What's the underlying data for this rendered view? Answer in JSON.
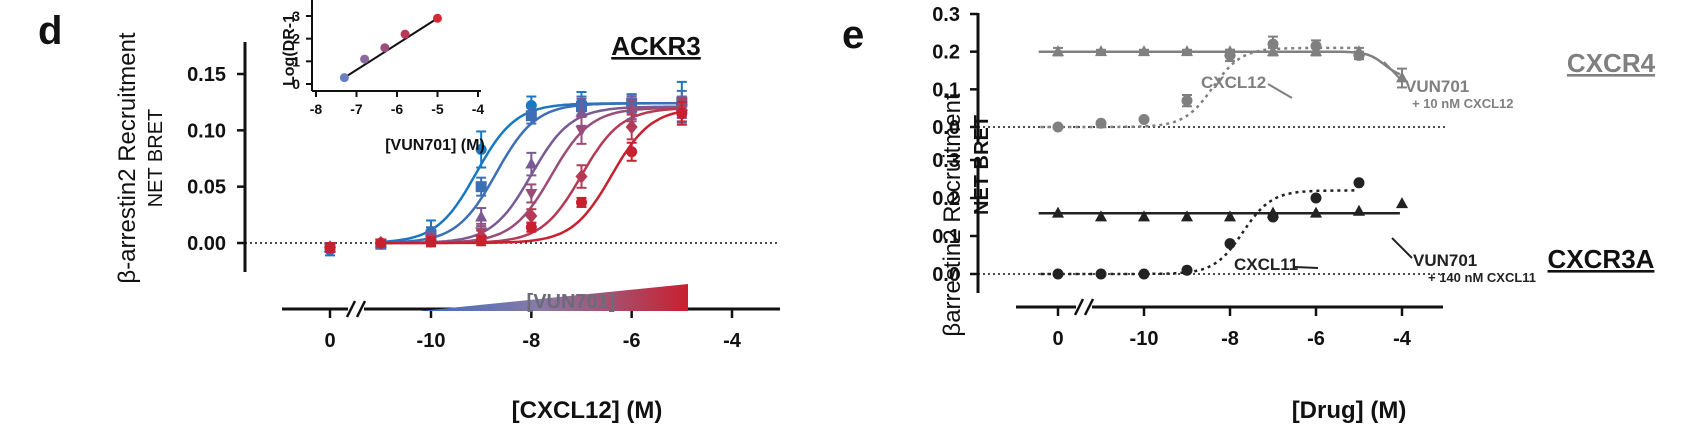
{
  "panels": {
    "d": {
      "letter": "d",
      "receptor": "ACKR3",
      "ylabel_main": "β-arrestin2 Recruitment",
      "ylabel_sub": "NET BRET",
      "xlabel": "[CXCL12] (M)",
      "gradient_label": "[VUN701]",
      "inset": {
        "ylabel": "Log(DR-1",
        "xlabel": "[VUN701] (M)"
      }
    },
    "e": {
      "letter": "e",
      "ylabel_main": "βarrestin2 Recruitment",
      "ylabel_sub": "NET BRET",
      "xlabel": "[Drug] (M)",
      "top": {
        "receptor": "CXCR4",
        "ann_ligand": "CXCL12",
        "ann_drug": "VUN701",
        "ann_drug_sub": "+ 10 nM CXCL12"
      },
      "bottom": {
        "receptor": "CXCR3A",
        "ann_ligand": "CXCL11",
        "ann_drug": "VUN701",
        "ann_drug_sub": "+ 140 nM CXCL11"
      }
    }
  },
  "chart_data": [
    {
      "id": "d-main",
      "type": "line",
      "title": "ACKR3",
      "xlabel": "[CXCL12] (M)",
      "ylabel": "β-arrestin2 Recruitment NET BRET",
      "x_ticks": [
        "0",
        "-10",
        "-8",
        "-6",
        "-4"
      ],
      "x_tick_values": [
        -13,
        -10,
        -8,
        -6,
        -4
      ],
      "y_ticks": [
        "0.00",
        "0.05",
        "0.10",
        "0.15"
      ],
      "xlim": [
        -13.8,
        -3.1
      ],
      "ylim": [
        -0.02,
        0.16
      ],
      "x_axis_break": true,
      "reference_line_y": 0,
      "color_key": {
        "0": "#1a78c2",
        "1": "#3d6fb5",
        "2": "#7a5a93",
        "3": "#9a4d78",
        "4": "#b53a55",
        "5": "#c8202f"
      },
      "series": [
        {
          "color": "#1a78c2",
          "marker": "circle",
          "top": 0.124,
          "ec50_log": -9.1,
          "points": [
            [
              -13,
              -0.006
            ],
            [
              -11,
              -0.001
            ],
            [
              -10,
              0.01
            ],
            [
              -9,
              0.083
            ],
            [
              -8,
              0.122
            ],
            [
              -7,
              0.124
            ],
            [
              -6,
              0.124
            ],
            [
              -5,
              0.125
            ]
          ],
          "err": [
            0.005,
            0.004,
            0.01,
            0.016,
            0.008,
            0.01,
            0.008,
            0.018
          ]
        },
        {
          "color": "#3d6fb5",
          "marker": "square",
          "top": 0.124,
          "ec50_log": -8.7,
          "points": [
            [
              -13,
              -0.004
            ],
            [
              -11,
              -0.001
            ],
            [
              -10,
              0.007
            ],
            [
              -9,
              0.05
            ],
            [
              -8,
              0.113
            ],
            [
              -7,
              0.121
            ],
            [
              -6,
              0.124
            ],
            [
              -5,
              0.125
            ]
          ],
          "err": [
            0.004,
            0.003,
            0.007,
            0.008,
            0.007,
            0.009,
            0.008,
            0.01
          ]
        },
        {
          "color": "#7a5a93",
          "marker": "triangle",
          "top": 0.121,
          "ec50_log": -8.0,
          "points": [
            [
              -13,
              -0.004
            ],
            [
              -11,
              0.0
            ],
            [
              -10,
              0.004
            ],
            [
              -9,
              0.023
            ],
            [
              -8,
              0.07
            ],
            [
              -7,
              0.116
            ],
            [
              -6,
              0.12
            ],
            [
              -5,
              0.121
            ]
          ],
          "err": [
            0.004,
            0.003,
            0.005,
            0.008,
            0.01,
            0.012,
            0.01,
            0.009
          ]
        },
        {
          "color": "#9a4d78",
          "marker": "triangle-down",
          "top": 0.12,
          "ec50_log": -7.6,
          "points": [
            [
              -13,
              -0.004
            ],
            [
              -11,
              0.0
            ],
            [
              -10,
              0.003
            ],
            [
              -9,
              0.01
            ],
            [
              -8,
              0.044
            ],
            [
              -7,
              0.1
            ],
            [
              -6,
              0.117
            ],
            [
              -5,
              0.119
            ]
          ],
          "err": [
            0.004,
            0.003,
            0.004,
            0.007,
            0.008,
            0.012,
            0.009,
            0.008
          ]
        },
        {
          "color": "#b53a55",
          "marker": "diamond",
          "top": 0.12,
          "ec50_log": -7.0,
          "points": [
            [
              -13,
              -0.004
            ],
            [
              -11,
              0.0
            ],
            [
              -10,
              0.002
            ],
            [
              -9,
              0.006
            ],
            [
              -8,
              0.024
            ],
            [
              -7,
              0.059
            ],
            [
              -6,
              0.103
            ],
            [
              -5,
              0.118
            ]
          ],
          "err": [
            0.004,
            0.003,
            0.004,
            0.005,
            0.006,
            0.01,
            0.011,
            0.01
          ]
        },
        {
          "color": "#c8202f",
          "marker": "circle",
          "top": 0.12,
          "ec50_log": -6.4,
          "points": [
            [
              -13,
              -0.004
            ],
            [
              -11,
              0.0
            ],
            [
              -10,
              0.001
            ],
            [
              -9,
              0.002
            ],
            [
              -8,
              0.014
            ],
            [
              -7,
              0.036
            ],
            [
              -6,
              0.081
            ],
            [
              -5,
              0.115
            ]
          ],
          "err": [
            0.004,
            0.003,
            0.004,
            0.004,
            0.004,
            0.004,
            0.008,
            0.01
          ]
        }
      ]
    },
    {
      "id": "d-inset",
      "type": "line",
      "xlabel": "[VUN701] (M)",
      "ylabel": "Log(DR-1",
      "x_ticks": [
        "-8",
        "-7",
        "-6",
        "-5",
        "-4"
      ],
      "y_ticks": [
        "0",
        "1",
        "2",
        "3"
      ],
      "xlim": [
        -8,
        -4
      ],
      "ylim": [
        0,
        3.4
      ],
      "points": [
        [
          -7.3,
          0.28
        ],
        [
          -6.8,
          1.1
        ],
        [
          -6.3,
          1.6
        ],
        [
          -5.8,
          2.2
        ],
        [
          -5.0,
          2.9
        ]
      ],
      "point_colors": [
        "#6b7fc0",
        "#8a6a9a",
        "#9a4d78",
        "#b53a55",
        "#d42a36"
      ],
      "fit_line": [
        [
          -7.3,
          0.28
        ],
        [
          -5.0,
          2.9
        ]
      ]
    },
    {
      "id": "e-top",
      "type": "line",
      "title": "CXCR4",
      "xlabel": "[Drug] (M)",
      "ylabel": "βarrestin2 Recruitment NET BRET",
      "x_ticks": [
        "0",
        "-10",
        "-8",
        "-6",
        "-4"
      ],
      "x_tick_values": [
        -12.5,
        -10,
        -8,
        -6,
        -4
      ],
      "y_ticks": [
        "0.0",
        "0.1",
        "0.2",
        "0.3"
      ],
      "xlim": [
        -13.5,
        -3.1
      ],
      "ylim": [
        -0.03,
        0.31
      ],
      "reference_line_y": 0,
      "series": [
        {
          "name": "CXCL12",
          "color": "#808080",
          "marker": "circle",
          "curve": "dotted",
          "points": [
            [
              -12.5,
              0.0
            ],
            [
              -11,
              0.01
            ],
            [
              -10,
              0.02
            ],
            [
              -9,
              0.07
            ],
            [
              -8,
              0.19
            ],
            [
              -7,
              0.22
            ],
            [
              -6,
              0.215
            ],
            [
              -5,
              0.19
            ]
          ],
          "err": [
            0,
            0,
            0,
            0.015,
            0.015,
            0.02,
            0.015,
            0.01
          ]
        },
        {
          "name": "VUN701 + 10 nM CXCL12",
          "color": "#808080",
          "marker": "triangle",
          "curve": "solid",
          "points": [
            [
              -12.5,
              0.2
            ],
            [
              -11,
              0.2
            ],
            [
              -10,
              0.2
            ],
            [
              -9,
              0.2
            ],
            [
              -8,
              0.2
            ],
            [
              -7,
              0.2
            ],
            [
              -6,
              0.2
            ],
            [
              -5,
              0.2
            ],
            [
              -4,
              0.13
            ]
          ],
          "err": [
            0.01,
            0.005,
            0.005,
            0.005,
            0.005,
            0.01,
            0.01,
            0.01,
            0.025
          ]
        }
      ]
    },
    {
      "id": "e-bottom",
      "type": "line",
      "title": "CXCR3A",
      "xlabel": "[Drug] (M)",
      "ylabel": "βarrestin2 Recruitment NET BRET",
      "x_ticks": [
        "0",
        "-10",
        "-8",
        "-6",
        "-4"
      ],
      "x_tick_values": [
        -12.5,
        -10,
        -8,
        -6,
        -4
      ],
      "y_ticks": [
        "0.0",
        "0.1",
        "0.2",
        "0.3"
      ],
      "xlim": [
        -13.5,
        -3.1
      ],
      "ylim": [
        -0.05,
        0.31
      ],
      "x_axis_break": true,
      "reference_line_y": 0,
      "series": [
        {
          "name": "CXCL11",
          "color": "#222222",
          "marker": "circle",
          "curve": "dotted",
          "points": [
            [
              -12.5,
              0.0
            ],
            [
              -11,
              0.0
            ],
            [
              -10,
              0.0
            ],
            [
              -9,
              0.01
            ],
            [
              -8,
              0.08
            ],
            [
              -7,
              0.15
            ],
            [
              -6,
              0.2
            ],
            [
              -5,
              0.24
            ]
          ]
        },
        {
          "name": "VUN701 + 140 nM CXCL11",
          "color": "#222222",
          "marker": "triangle",
          "curve": "solid",
          "points": [
            [
              -12.5,
              0.16
            ],
            [
              -11,
              0.15
            ],
            [
              -10,
              0.15
            ],
            [
              -9,
              0.15
            ],
            [
              -8,
              0.15
            ],
            [
              -7,
              0.16
            ],
            [
              -6,
              0.16
            ],
            [
              -5,
              0.165
            ],
            [
              -4,
              0.185
            ]
          ]
        }
      ]
    }
  ]
}
